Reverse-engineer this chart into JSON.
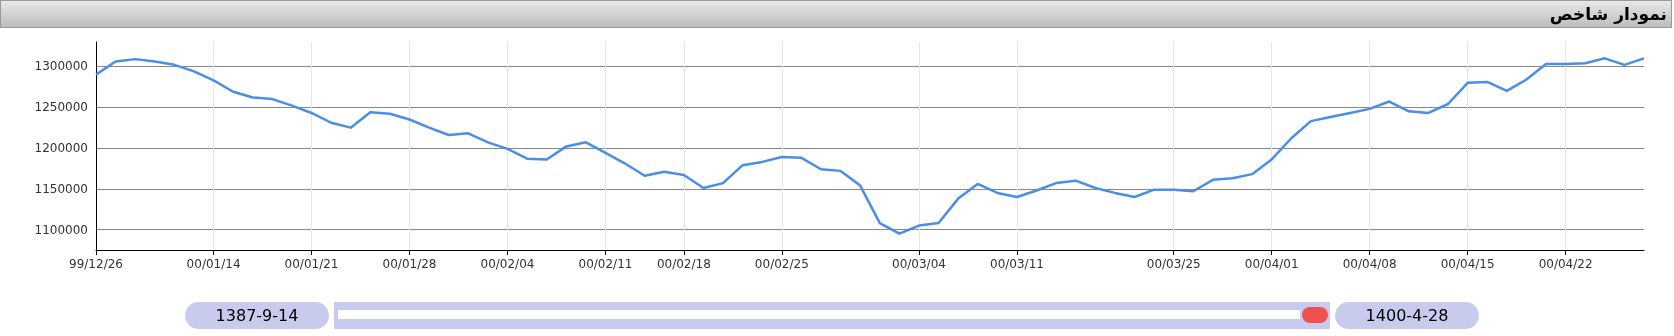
{
  "chart_data": {
    "type": "line",
    "title": "نمودار شاخص",
    "categories": [
      "99/12/26",
      null,
      null,
      null,
      null,
      null,
      "00/01/14",
      null,
      null,
      null,
      null,
      "00/01/21",
      null,
      null,
      null,
      null,
      "00/01/28",
      null,
      null,
      null,
      null,
      "00/02/04",
      null,
      null,
      null,
      null,
      "00/02/11",
      null,
      null,
      null,
      "00/02/18",
      null,
      null,
      null,
      null,
      "00/02/25",
      null,
      null,
      null,
      null,
      null,
      null,
      "00/03/04",
      null,
      null,
      null,
      null,
      "00/03/11",
      null,
      null,
      null,
      null,
      null,
      null,
      null,
      "00/03/25",
      null,
      null,
      null,
      null,
      "00/04/01",
      null,
      null,
      null,
      null,
      "00/04/08",
      null,
      null,
      null,
      null,
      "00/04/15",
      null,
      null,
      null,
      null,
      "00/04/22",
      null,
      null,
      null,
      null
    ],
    "series": [
      {
        "color": "#4a8fe7",
        "values": [
          1290000,
          1306000,
          1309000,
          1306000,
          1302000,
          1294000,
          1283000,
          1269000,
          1262000,
          1260000,
          1252000,
          1243000,
          1231000,
          1225000,
          1244000,
          1242000,
          1235000,
          1225000,
          1216000,
          1218000,
          1207000,
          1199000,
          1187000,
          1186000,
          1202000,
          1207000,
          1194000,
          1181000,
          1166000,
          1171000,
          1167000,
          1151000,
          1157000,
          1179000,
          1183000,
          1189000,
          1188000,
          1174000,
          1172000,
          1154000,
          1108000,
          1095000,
          1105000,
          1108000,
          1138000,
          1156000,
          1145000,
          1140000,
          1148000,
          1157000,
          1160000,
          1151000,
          1145000,
          1140000,
          1149000,
          1149000,
          1147000,
          1161000,
          1163000,
          1168000,
          1186000,
          1212000,
          1233000,
          1238000,
          1243000,
          1248000,
          1257000,
          1245000,
          1243000,
          1254000,
          1280000,
          1281000,
          1270000,
          1284000,
          1303000,
          1303000,
          1304000,
          1310000,
          1302000,
          1310000
        ]
      }
    ],
    "ylim": [
      1075000,
      1330000
    ],
    "yticks": [
      1100000,
      1150000,
      1200000,
      1250000,
      1300000
    ],
    "grid": true,
    "marker": "none",
    "line_style": "solid",
    "annotations": [
      "1387-9-14",
      "1400-4-28"
    ]
  }
}
